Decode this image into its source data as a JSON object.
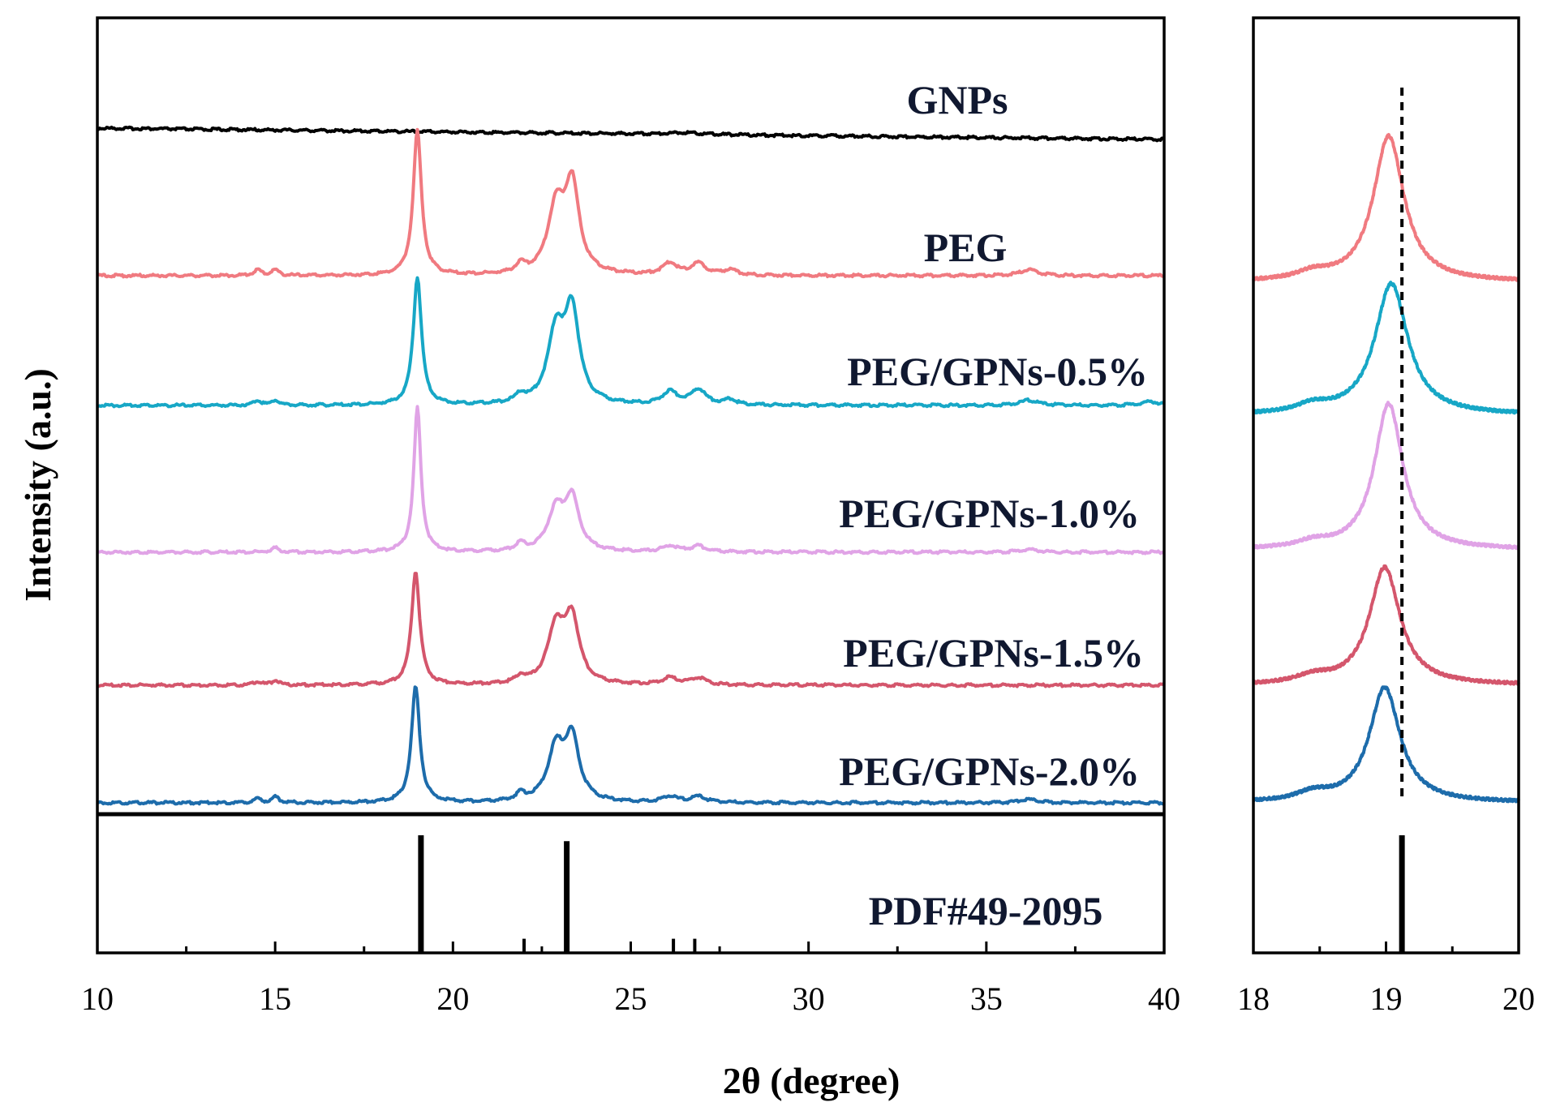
{
  "chart_data": [
    {
      "type": "line",
      "panel": "main",
      "xlabel": "2θ (degree)",
      "ylabel": "Intensity (a.u.)",
      "xlim": [
        10,
        40
      ],
      "xticks": [
        "10",
        "15",
        "20",
        "25",
        "30",
        "35",
        "40"
      ],
      "grid": false,
      "offset_stacked": true,
      "series": [
        {
          "name": "GNPs",
          "color": "#000000",
          "peaks": [
            [
              26.5,
              0.1,
              0.55
            ]
          ]
        },
        {
          "name": "PEG",
          "color": "#f07a80",
          "peaks": [
            [
              14.5,
              0.04,
              0.12
            ],
            [
              15.0,
              0.04,
              0.12
            ],
            [
              19.0,
              1.0,
              0.14
            ],
            [
              21.9,
              0.06,
              0.15
            ],
            [
              22.9,
              0.45,
              0.28
            ],
            [
              23.35,
              0.6,
              0.24
            ],
            [
              26.1,
              0.08,
              0.25
            ],
            [
              26.9,
              0.08,
              0.25
            ],
            [
              27.8,
              0.04,
              0.2
            ],
            [
              36.2,
              0.04,
              0.3
            ]
          ]
        },
        {
          "name": "PEG/GPNs-0.5%",
          "color": "#17a7c6",
          "peaks": [
            [
              14.5,
              0.04,
              0.12
            ],
            [
              15.0,
              0.04,
              0.12
            ],
            [
              19.0,
              1.0,
              0.14
            ],
            [
              21.9,
              0.06,
              0.15
            ],
            [
              22.9,
              0.55,
              0.28
            ],
            [
              23.35,
              0.7,
              0.24
            ],
            [
              26.1,
              0.1,
              0.25
            ],
            [
              26.9,
              0.12,
              0.25
            ],
            [
              27.8,
              0.04,
              0.2
            ],
            [
              36.2,
              0.04,
              0.3
            ],
            [
              39.6,
              0.03,
              0.3
            ]
          ]
        },
        {
          "name": "PEG/GPNs-1.0%",
          "color": "#e0a3e6",
          "peaks": [
            [
              15.0,
              0.03,
              0.12
            ],
            [
              19.0,
              1.0,
              0.12
            ],
            [
              21.9,
              0.05,
              0.15
            ],
            [
              22.9,
              0.28,
              0.28
            ],
            [
              23.35,
              0.35,
              0.24
            ],
            [
              26.1,
              0.04,
              0.25
            ],
            [
              26.9,
              0.04,
              0.25
            ],
            [
              36.2,
              0.02,
              0.3
            ]
          ]
        },
        {
          "name": "PEG/GPNs-1.5%",
          "color": "#d4566c",
          "peaks": [
            [
              14.5,
              0.03,
              0.12
            ],
            [
              15.0,
              0.04,
              0.12
            ],
            [
              18.95,
              1.0,
              0.14
            ],
            [
              21.9,
              0.06,
              0.15
            ],
            [
              22.9,
              0.5,
              0.28
            ],
            [
              23.35,
              0.55,
              0.24
            ],
            [
              26.1,
              0.06,
              0.25
            ],
            [
              26.9,
              0.06,
              0.25
            ]
          ]
        },
        {
          "name": "PEG/GPNs-2.0%",
          "color": "#1d6cab",
          "peaks": [
            [
              14.5,
              0.03,
              0.12
            ],
            [
              15.0,
              0.05,
              0.12
            ],
            [
              18.95,
              1.0,
              0.14
            ],
            [
              21.9,
              0.06,
              0.15
            ],
            [
              22.9,
              0.45,
              0.28
            ],
            [
              23.35,
              0.52,
              0.24
            ],
            [
              26.1,
              0.05,
              0.25
            ],
            [
              26.9,
              0.05,
              0.25
            ],
            [
              36.2,
              0.03,
              0.3
            ]
          ]
        }
      ],
      "reference": {
        "name": "PDF#49-2095",
        "sticks": [
          [
            19.1,
            1.0
          ],
          [
            22.0,
            0.12
          ],
          [
            23.2,
            0.95
          ],
          [
            26.2,
            0.12
          ],
          [
            26.8,
            0.12
          ]
        ]
      }
    },
    {
      "type": "line",
      "panel": "zoom",
      "xlim": [
        18,
        20
      ],
      "xticks": [
        "18",
        "19",
        "20"
      ],
      "grid": false,
      "dashed_reference_x": 19.12,
      "series": [
        {
          "name": "PEG",
          "color": "#f07a80",
          "peaks": [
            [
              19.02,
              1.0,
              0.14
            ],
            [
              18.45,
              0.05,
              0.15
            ]
          ]
        },
        {
          "name": "PEG/GPNs-0.5%",
          "color": "#17a7c6",
          "peaks": [
            [
              19.04,
              1.0,
              0.15
            ],
            [
              18.45,
              0.06,
              0.15
            ]
          ]
        },
        {
          "name": "PEG/GPNs-1.0%",
          "color": "#e0a3e6",
          "peaks": [
            [
              19.02,
              1.0,
              0.13
            ],
            [
              18.45,
              0.04,
              0.15
            ]
          ]
        },
        {
          "name": "PEG/GPNs-1.5%",
          "color": "#d4566c",
          "peaks": [
            [
              18.99,
              1.0,
              0.14
            ],
            [
              18.45,
              0.06,
              0.15
            ]
          ]
        },
        {
          "name": "PEG/GPNs-2.0%",
          "color": "#1d6cab",
          "peaks": [
            [
              18.99,
              1.0,
              0.14
            ],
            [
              18.45,
              0.07,
              0.15
            ]
          ]
        }
      ],
      "reference": {
        "sticks": [
          [
            19.12,
            1.0
          ]
        ]
      }
    }
  ]
}
